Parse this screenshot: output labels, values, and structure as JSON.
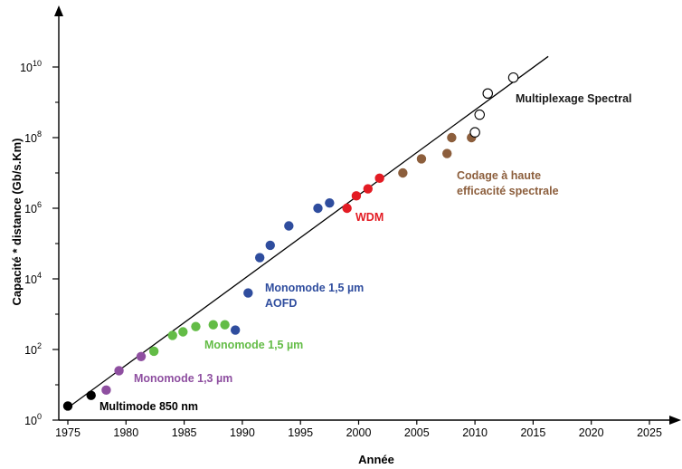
{
  "chart_data": {
    "type": "scatter",
    "xlabel": "Année",
    "ylabel": "Capacité * distance (Gb/s.Km)",
    "x_ticks": [
      "1975",
      "1980",
      "1985",
      "1990",
      "1995",
      "2000",
      "2005",
      "2010",
      "2015",
      "2020",
      "2025"
    ],
    "y_ticks": [
      {
        "base": "10",
        "exp": "0"
      },
      {
        "base": "10",
        "exp": "2"
      },
      {
        "base": "10",
        "exp": "4"
      },
      {
        "base": "10",
        "exp": "6"
      },
      {
        "base": "10",
        "exp": "8"
      },
      {
        "base": "10",
        "exp": "10"
      }
    ],
    "xlim": [
      1974,
      2028
    ],
    "ylim_log10": [
      0,
      10.8
    ],
    "y_scale": "log",
    "grid": false,
    "trend_line": {
      "x": [
        1975,
        2016.3
      ],
      "log10_y": [
        0.35,
        10.3
      ],
      "color": "#000000"
    },
    "series": [
      {
        "name": "Multimode 850 nm",
        "color": "#000000",
        "hollow": false,
        "points": [
          {
            "x": 1975,
            "log10_y": 0.4
          },
          {
            "x": 1977,
            "log10_y": 0.7
          }
        ]
      },
      {
        "name": "Monomode 1,3 µm",
        "color": "#8e4fa0",
        "hollow": false,
        "points": [
          {
            "x": 1978.3,
            "log10_y": 0.85
          },
          {
            "x": 1979.4,
            "log10_y": 1.4
          },
          {
            "x": 1981.3,
            "log10_y": 1.8
          }
        ]
      },
      {
        "name": "Monomode 1,5 µm",
        "color": "#63bc46",
        "hollow": false,
        "points": [
          {
            "x": 1982.4,
            "log10_y": 1.95
          },
          {
            "x": 1984.0,
            "log10_y": 2.4
          },
          {
            "x": 1984.9,
            "log10_y": 2.5
          },
          {
            "x": 1986.0,
            "log10_y": 2.65
          },
          {
            "x": 1987.5,
            "log10_y": 2.7
          },
          {
            "x": 1988.5,
            "log10_y": 2.7
          }
        ]
      },
      {
        "name": "Monomode 1,5 µm AOFD",
        "color": "#2f4d9e",
        "hollow": false,
        "points": [
          {
            "x": 1989.4,
            "log10_y": 2.55
          },
          {
            "x": 1990.5,
            "log10_y": 3.6
          },
          {
            "x": 1991.5,
            "log10_y": 4.6
          },
          {
            "x": 1992.4,
            "log10_y": 4.95
          },
          {
            "x": 1994.0,
            "log10_y": 5.5
          },
          {
            "x": 1996.5,
            "log10_y": 6.0
          },
          {
            "x": 1997.5,
            "log10_y": 6.15
          }
        ]
      },
      {
        "name": "WDM",
        "color": "#e31b23",
        "hollow": false,
        "points": [
          {
            "x": 1999.0,
            "log10_y": 6.0
          },
          {
            "x": 1999.8,
            "log10_y": 6.35
          },
          {
            "x": 2000.8,
            "log10_y": 6.55
          },
          {
            "x": 2001.8,
            "log10_y": 6.85
          }
        ]
      },
      {
        "name": "Codage à haute efficacité spectrale",
        "color": "#8c5e3c",
        "hollow": false,
        "points": [
          {
            "x": 2003.8,
            "log10_y": 7.0
          },
          {
            "x": 2005.4,
            "log10_y": 7.4
          },
          {
            "x": 2007.6,
            "log10_y": 7.55
          },
          {
            "x": 2008.0,
            "log10_y": 8.0
          },
          {
            "x": 2009.7,
            "log10_y": 8.0
          }
        ]
      },
      {
        "name": "Multiplexage Spectral",
        "color": "#000000",
        "hollow": true,
        "points": [
          {
            "x": 2010.0,
            "log10_y": 8.15
          },
          {
            "x": 2010.4,
            "log10_y": 8.65
          },
          {
            "x": 2011.1,
            "log10_y": 9.25
          },
          {
            "x": 2013.3,
            "log10_y": 9.7
          }
        ]
      }
    ],
    "annotations": [
      {
        "lines": [
          "Multimode  850 nm"
        ],
        "color": "#000000"
      },
      {
        "lines": [
          "Monomode  1,3 µm"
        ],
        "color": "#8e4fa0"
      },
      {
        "lines": [
          "Monomode 1,5 µm"
        ],
        "color": "#63bc46"
      },
      {
        "lines": [
          "Monomode 1,5 µm",
          "AOFD"
        ],
        "color": "#2f4d9e"
      },
      {
        "lines": [
          "WDM"
        ],
        "color": "#e31b23"
      },
      {
        "lines": [
          "Codage à haute",
          "efficacité spectrale"
        ],
        "color": "#8c5e3c"
      },
      {
        "lines": [
          "Multiplexage Spectral"
        ],
        "color": "#1a1a1a"
      }
    ]
  }
}
